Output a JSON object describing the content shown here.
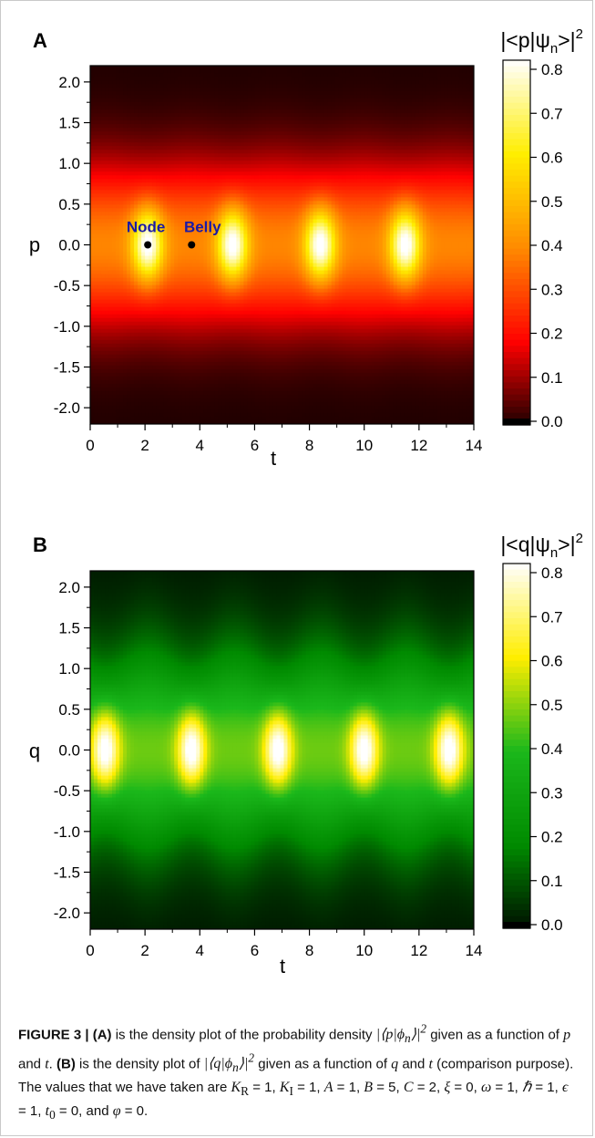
{
  "chart_data": [
    {
      "type": "heatmap",
      "panel_label": "A",
      "title": "|<p|ψn>|2",
      "title_parts": {
        "pre": "|<p|ψ",
        "sub": "n",
        "post": ">|",
        "sup": "2"
      },
      "xlabel": "t",
      "ylabel": "p",
      "xlim": [
        0,
        14
      ],
      "ylim": [
        -2.2,
        2.2
      ],
      "x_ticks": [
        0,
        2,
        4,
        6,
        8,
        10,
        12,
        14
      ],
      "x_tick_labels": [
        "0",
        "2",
        "4",
        "6",
        "8",
        "10",
        "12",
        "14"
      ],
      "y_ticks": [
        2.0,
        1.5,
        1.0,
        0.5,
        0.0,
        -0.5,
        -1.0,
        -1.5,
        -2.0
      ],
      "y_tick_labels": [
        "2.0",
        "1.5",
        "1.0",
        "0.5",
        "0.0",
        "-0.5",
        "-1.0",
        "-1.5",
        "-2.0"
      ],
      "colorbar": {
        "range": [
          0,
          0.8
        ],
        "ticks": [
          0.8,
          0.7,
          0.6,
          0.5,
          0.4,
          0.3,
          0.2,
          0.1,
          0.0
        ],
        "tick_labels": [
          "0.8",
          "0.7",
          "0.6",
          "0.5",
          "0.4",
          "0.3",
          "0.2",
          "0.1",
          "0.0"
        ],
        "colormap": [
          "#000000",
          "#ff0000",
          "#ff8a00",
          "#ffee00",
          "#ffffff"
        ]
      },
      "peak_t": [
        2.1,
        5.2,
        8.4,
        11.5
      ],
      "annotations": [
        {
          "text": "Node",
          "t": 2.1,
          "p": 0.0,
          "color": "#1a1aa6"
        },
        {
          "text": "Belly",
          "t": 3.7,
          "p": 0.0,
          "color": "#1a1aa6"
        }
      ]
    },
    {
      "type": "heatmap",
      "panel_label": "B",
      "title": "|<q|ψn>|2",
      "title_parts": {
        "pre": "|<q|ψ",
        "sub": "n",
        "post": ">|",
        "sup": "2"
      },
      "xlabel": "t",
      "ylabel": "q",
      "xlim": [
        0,
        14
      ],
      "ylim": [
        -2.2,
        2.2
      ],
      "x_ticks": [
        0,
        2,
        4,
        6,
        8,
        10,
        12,
        14
      ],
      "x_tick_labels": [
        "0",
        "2",
        "4",
        "6",
        "8",
        "10",
        "12",
        "14"
      ],
      "y_ticks": [
        2.0,
        1.5,
        1.0,
        0.5,
        0.0,
        -0.5,
        -1.0,
        -1.5,
        -2.0
      ],
      "y_tick_labels": [
        "2.0",
        "1.5",
        "1.0",
        "0.5",
        "0.0",
        "-0.5",
        "-1.0",
        "-1.5",
        "-2.0"
      ],
      "colorbar": {
        "range": [
          0,
          0.8
        ],
        "ticks": [
          0.8,
          0.7,
          0.6,
          0.5,
          0.4,
          0.3,
          0.2,
          0.1,
          0.0
        ],
        "tick_labels": [
          "0.8",
          "0.7",
          "0.6",
          "0.5",
          "0.4",
          "0.3",
          "0.2",
          "0.1",
          "0.0"
        ],
        "colormap": [
          "#000000",
          "#008a00",
          "#1bb81b",
          "#ffee00",
          "#ffffff"
        ]
      },
      "peak_t": [
        0.55,
        3.7,
        6.85,
        10.0,
        13.1
      ],
      "annotations": []
    }
  ],
  "caption": {
    "lead": "FIGURE 3 | (A)",
    "t1": " is the density plot of the probability density ",
    "m1": "|⟨p|ϕ",
    "m1sub": "n",
    "m1b": "⟩|",
    "m1sup": "2",
    "t2": " given as a function of ",
    "p": "p",
    "t3": " and ",
    "t": "t",
    "t4": ". ",
    "lead2": "(B)",
    "t5": " is the density plot of ",
    "m2": "|⟨q|ϕ",
    "m2sub": "n",
    "m2b": "⟩|",
    "m2sup": "2",
    "t6": " given as a function of ",
    "q": "q",
    "t7": " and ",
    "t8": " (comparison purpose). The values that we have taken are ",
    "params": "K",
    "kr_sub": "R",
    "eq1": " = 1, ",
    "ki": "K",
    "ki_sub": "I",
    "eq2": " = 1, ",
    "a": "A",
    "eq3": " = 1, ",
    "b": "B",
    "eq4": " = 5, ",
    "c": "C",
    "eq5": " = 2, ",
    "xi": "ξ",
    "eq6": " = 0, ",
    "omega": "ω",
    "eq7": " = 1, ",
    "hbar": "ℏ",
    "eq8": " = 1, ",
    "eps": "ϵ",
    "eq9": " = 1,",
    "t0": "t",
    "t0_sub": "0",
    "eq10": " = 0, and ",
    "phi": "φ",
    "eq11": " = 0."
  }
}
